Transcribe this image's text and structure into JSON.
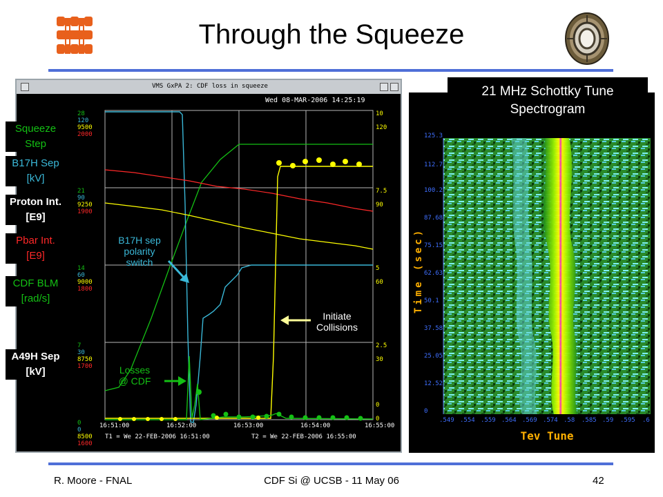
{
  "slide": {
    "title": "Through the Squeeze",
    "footer": {
      "author": "R. Moore - FNAL",
      "event": "CDF Si @ UCSB - 11 May 06",
      "page": "42"
    }
  },
  "scope": {
    "window_title": "VMS GxPA 2: CDF loss in squeeze",
    "date": "Wed 08-MAR-2006 14:25:19",
    "left_ticks": [
      [
        "28",
        "120",
        "9500",
        "2000"
      ],
      [
        "21",
        "90",
        "9250",
        "1900"
      ],
      [
        "14",
        "60",
        "9000",
        "1800"
      ],
      [
        "7",
        "30",
        "8750",
        "1700"
      ],
      [
        "0",
        "0",
        "8500",
        "1600"
      ]
    ],
    "right_ticks": [
      [
        "10",
        "120"
      ],
      [
        "7.5",
        "90"
      ],
      [
        "5",
        "60"
      ],
      [
        "2.5",
        "30"
      ],
      [
        "0",
        "0"
      ]
    ],
    "time_ticks": [
      "16:51:00",
      "16:52:00",
      "16:53:00",
      "16:54:00",
      "16:55:00"
    ],
    "range_label_t1": "T1 = We 22-FEB-2006 16:51:00",
    "range_label_t2": "T2 = We 22-FEB-2006 16:55:00",
    "labels": {
      "squeeze_step": "Squeeze Step",
      "b17h_sep": "B17H Sep [kV]",
      "proton_int": "Proton Int. [E9]",
      "pbar_int": "Pbar Int. [E9]",
      "cdf_blm": "CDF BLM [rad/s]",
      "a49h_sep": "A49H Sep [kV]"
    },
    "annotations": {
      "polarity": "B17H sep polarity switch",
      "collisions": "Initiate Collisions",
      "losses": "Losses @ CDF"
    },
    "colors": {
      "squeeze": "#14c014",
      "b17h": "#3ab8d8",
      "proton": "#ffff00",
      "pbar": "#ff2828",
      "blm": "#14c014",
      "a49h": "#ffff00"
    }
  },
  "spectrogram": {
    "title": "21 MHz Schottky Tune Spectrogram",
    "y_axis_label": "Time (sec)",
    "x_axis_label": "Tev Tune",
    "y_ticks": [
      "125.3",
      "112.7",
      "100.2",
      "87.68",
      "75.15",
      "62.63",
      "50.1",
      "37.58",
      "25.05",
      "12.52",
      "0"
    ],
    "x_ticks": [
      ".549",
      ".554",
      ".559",
      ".564",
      ".569",
      ".574",
      ".58",
      ".585",
      ".59",
      ".595",
      ".6"
    ]
  }
}
